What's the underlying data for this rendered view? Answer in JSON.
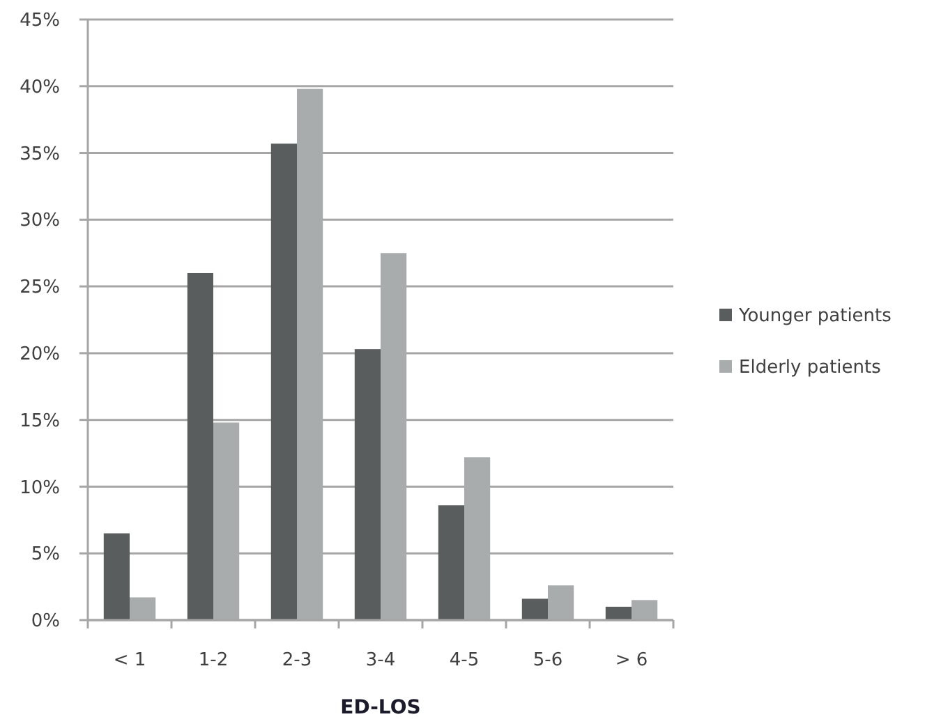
{
  "chart_data": {
    "type": "bar",
    "xlabel": "ED-LOS",
    "categories": [
      "< 1",
      "1-2",
      "2-3",
      "3-4",
      "4-5",
      "5-6",
      "> 6"
    ],
    "series": [
      {
        "name": "Younger patients",
        "color": "#595d5e",
        "values": [
          6.5,
          26.0,
          35.7,
          20.3,
          8.6,
          1.6,
          1.0
        ]
      },
      {
        "name": "Elderly patients",
        "color": "#a9acad",
        "values": [
          1.7,
          14.8,
          39.8,
          27.5,
          12.2,
          2.6,
          1.5
        ]
      }
    ],
    "ylim": [
      0,
      45
    ],
    "yticks": [
      {
        "value": 0,
        "label": "0%"
      },
      {
        "value": 5,
        "label": "5%"
      },
      {
        "value": 10,
        "label": "10%"
      },
      {
        "value": 15,
        "label": "15%"
      },
      {
        "value": 20,
        "label": "20%"
      },
      {
        "value": 25,
        "label": "25%"
      },
      {
        "value": 30,
        "label": "30%"
      },
      {
        "value": 35,
        "label": "35%"
      },
      {
        "value": 40,
        "label": "40%"
      },
      {
        "value": 45,
        "label": "45%"
      }
    ],
    "grid": "y",
    "legend": "right"
  }
}
